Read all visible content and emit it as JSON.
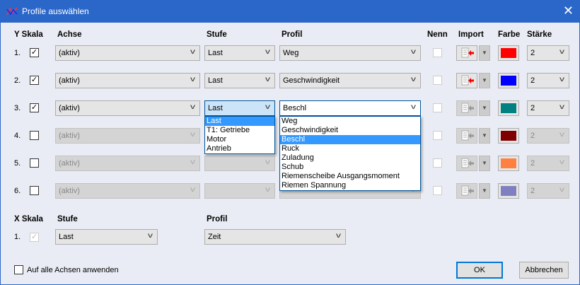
{
  "window": {
    "title": "Profile auswählen",
    "close_icon": "close-icon",
    "app_icon": "chart-icon"
  },
  "y_headers": {
    "skala": "Y Skala",
    "achse": "Achse",
    "stufe": "Stufe",
    "profil": "Profil",
    "nenn": "Nenn",
    "import": "Import",
    "farbe": "Farbe",
    "staerke": "Stärke"
  },
  "rows": [
    {
      "num": "1.",
      "checked": true,
      "enabled": true,
      "achse": "(aktiv)",
      "stufe": "Last",
      "profil": "Weg",
      "color": "#ff0000",
      "staerke": "2"
    },
    {
      "num": "2.",
      "checked": true,
      "enabled": true,
      "achse": "(aktiv)",
      "stufe": "Last",
      "profil": "Geschwindigkeit",
      "color": "#0000ff",
      "staerke": "2"
    },
    {
      "num": "3.",
      "checked": true,
      "enabled": true,
      "achse": "(aktiv)",
      "stufe": "Last",
      "profil": "Beschl",
      "color": "#008080",
      "staerke": "2"
    },
    {
      "num": "4.",
      "checked": false,
      "enabled": false,
      "achse": "(aktiv)",
      "stufe": "",
      "profil": "",
      "color": "#800000",
      "staerke": "2"
    },
    {
      "num": "5.",
      "checked": false,
      "enabled": false,
      "achse": "(aktiv)",
      "stufe": "",
      "profil": "",
      "color": "#ff8040",
      "staerke": "2"
    },
    {
      "num": "6.",
      "checked": false,
      "enabled": false,
      "achse": "(aktiv)",
      "stufe": "",
      "profil": "",
      "color": "#8080c0",
      "staerke": "2"
    }
  ],
  "stufe_dropdown": {
    "items": [
      "Last",
      "T1: Getriebe",
      "Motor",
      "Antrieb"
    ],
    "selected": "Last"
  },
  "profil_dropdown": {
    "items": [
      "Weg",
      "Geschwindigkeit",
      "Beschl",
      "Ruck",
      "Zuladung",
      "Schub",
      "Riemenscheibe Ausgangsmoment",
      "Riemen Spannung"
    ],
    "selected": "Beschl"
  },
  "x_headers": {
    "skala": "X Skala",
    "stufe": "Stufe",
    "profil": "Profil"
  },
  "x_row": {
    "num": "1.",
    "checked": true,
    "stufe": "Last",
    "profil": "Zeit"
  },
  "footer": {
    "apply_all": "Auf alle Achsen anwenden",
    "apply_all_checked": false,
    "ok": "OK",
    "cancel": "Abbrechen"
  }
}
